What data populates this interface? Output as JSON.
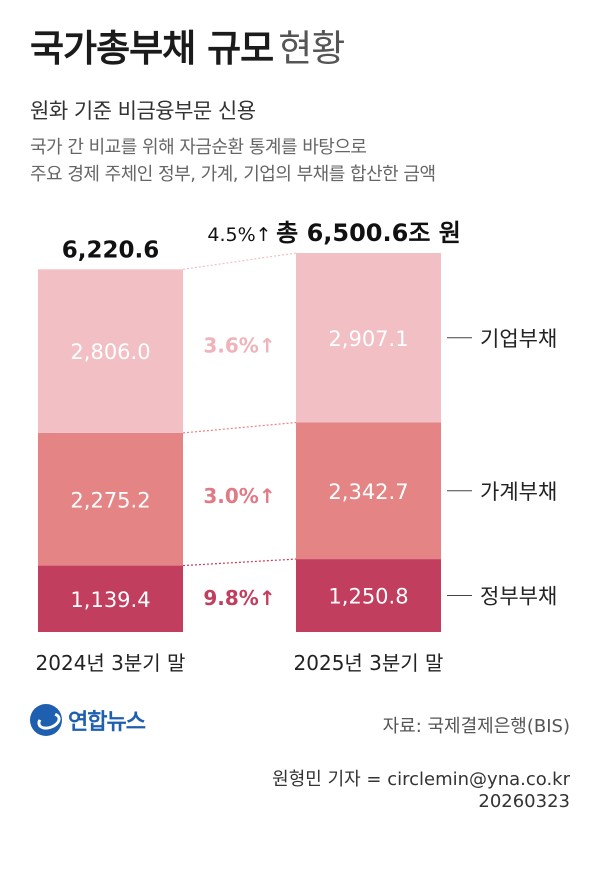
{
  "title": {
    "main": "국가총부채 규모",
    "sub": "현황"
  },
  "subtitle": "원화 기준 비금융부문 신용",
  "description": [
    "국가 간 비교를 위해 자금순환 통계를 바탕으로",
    "주요 경제 주체인 정부, 가계, 기업의 부채를 합산한 금액"
  ],
  "chart_data": {
    "type": "bar",
    "stacked": true,
    "categories": [
      "2024년 3분기 말",
      "2025년 3분기 말"
    ],
    "totals": [
      "6,220.6",
      "총 6,500.6조 원"
    ],
    "total_values": [
      6220.6,
      6500.6
    ],
    "total_growth": "4.5%↑",
    "series": [
      {
        "name": "정부부채",
        "values": [
          1139.4,
          1250.8
        ],
        "labels": [
          "1,139.4",
          "1,250.8"
        ],
        "growth": "9.8%↑",
        "color": "#c13e5e",
        "growth_color": "#c13e5e"
      },
      {
        "name": "가계부채",
        "values": [
          2275.2,
          2342.7
        ],
        "labels": [
          "2,275.2",
          "2,342.7"
        ],
        "growth": "3.0%↑",
        "color": "#e58484",
        "growth_color": "#e07a84"
      },
      {
        "name": "기업부채",
        "values": [
          2806.0,
          2907.1
        ],
        "labels": [
          "2,806.0",
          "2,907.1"
        ],
        "growth": "3.6%↑",
        "color": "#f1bfc4",
        "growth_color": "#eeb3bb"
      }
    ],
    "label_color": "#ffffff"
  },
  "footer": {
    "logo": "연합뉴스",
    "source": "자료: 국제결제은행(BIS)",
    "credit": "원형민 기자 = circlemin@yna.co.kr",
    "date": "20260323"
  }
}
